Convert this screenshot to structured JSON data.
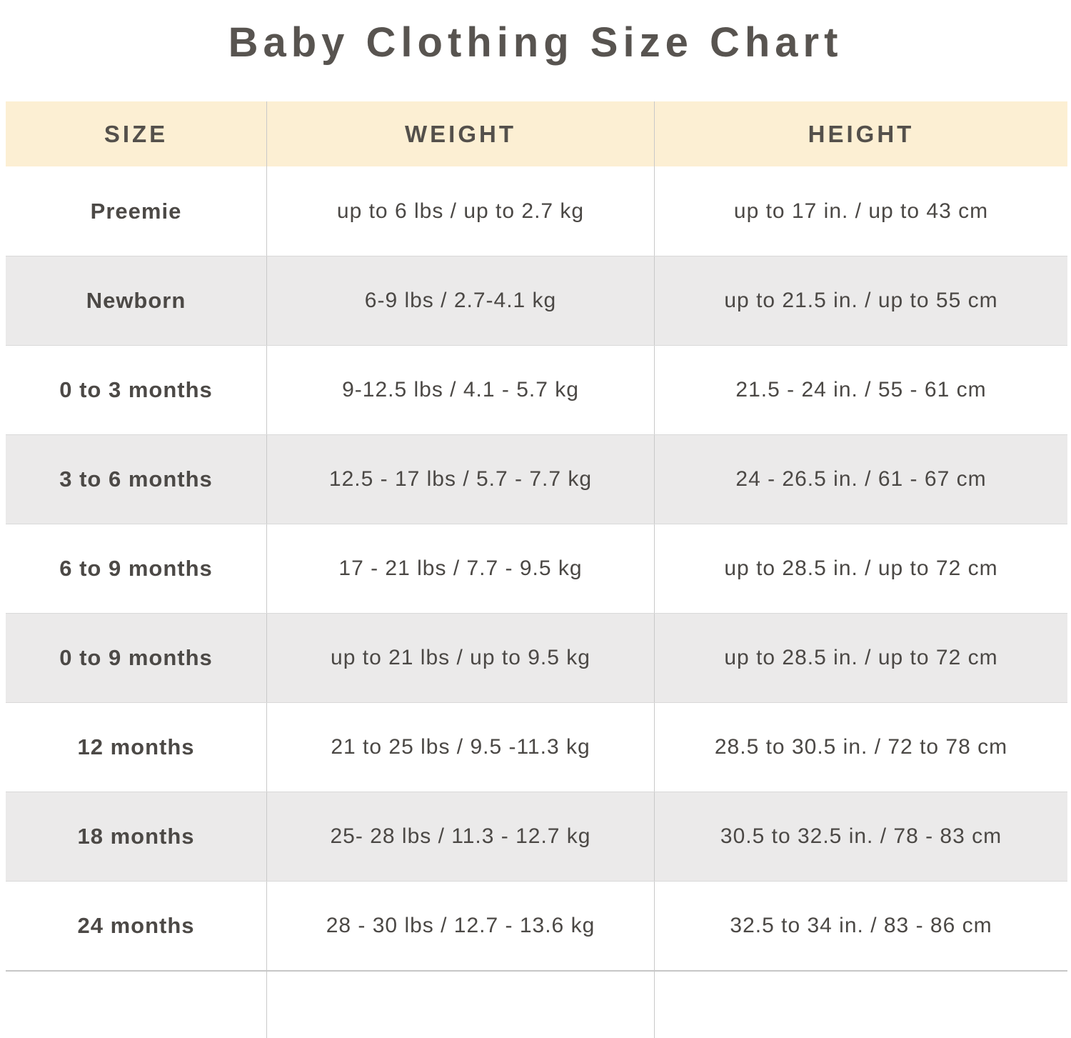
{
  "page": {
    "title": "Baby Clothing Size Chart"
  },
  "colors": {
    "header_bg": "#fcefd3",
    "row_alt_bg": "#ebeaea",
    "row_bg": "#ffffff",
    "text": "#4b4845",
    "title_text": "#585450",
    "column_divider": "#c9c9c9",
    "row_divider": "#d9d9d9"
  },
  "chart_data": {
    "type": "table",
    "title": "Baby Clothing Size Chart",
    "columns": [
      "SIZE",
      "WEIGHT",
      "HEIGHT"
    ],
    "rows": [
      [
        "Preemie",
        "up to 6 lbs / up to 2.7 kg",
        "up to 17 in. / up to 43 cm"
      ],
      [
        "Newborn",
        "6-9 lbs / 2.7-4.1 kg",
        "up to 21.5 in. / up to 55 cm"
      ],
      [
        "0 to 3 months",
        "9-12.5 lbs / 4.1 - 5.7 kg",
        "21.5 - 24 in. / 55 - 61 cm"
      ],
      [
        "3 to 6 months",
        "12.5 - 17 lbs / 5.7 - 7.7 kg",
        "24 - 26.5 in. / 61 - 67 cm"
      ],
      [
        "6 to 9 months",
        "17 - 21 lbs / 7.7 - 9.5 kg",
        "up to 28.5 in. / up to 72 cm"
      ],
      [
        "0 to 9 months",
        "up to 21 lbs / up to 9.5 kg",
        "up to 28.5 in. / up to 72 cm"
      ],
      [
        "12 months",
        "21 to 25 lbs / 9.5 -11.3 kg",
        "28.5 to 30.5 in. / 72 to 78 cm"
      ],
      [
        "18 months",
        "25- 28 lbs / 11.3 - 12.7 kg",
        "30.5 to 32.5 in. / 78 - 83 cm"
      ],
      [
        "24 months",
        "28 - 30 lbs / 12.7 - 13.6 kg",
        "32.5 to 34 in. / 83 - 86 cm"
      ]
    ],
    "layout": {
      "zebra_striping": true,
      "header_background": "cream",
      "column_alignment": "center"
    }
  }
}
